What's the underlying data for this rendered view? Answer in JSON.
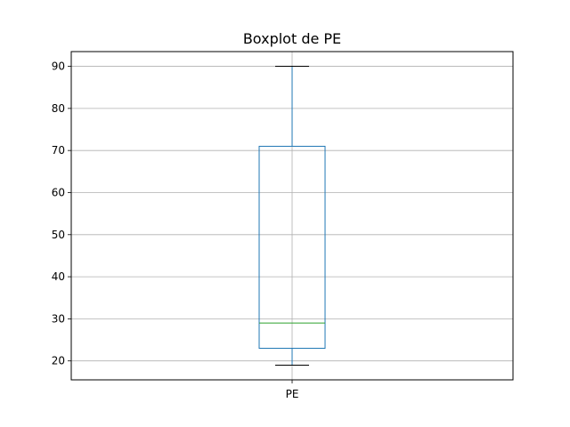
{
  "chart_data": {
    "type": "box",
    "title": "Boxplot de PE",
    "xlabel": "",
    "ylabel": "",
    "categories": [
      "PE"
    ],
    "boxes": [
      {
        "category": "PE",
        "whisker_low": 19,
        "q1": 23,
        "median": 29,
        "q3": 71,
        "whisker_high": 90
      }
    ],
    "ylim": [
      15.5,
      93.5
    ],
    "yticks": [
      20,
      30,
      40,
      50,
      60,
      70,
      80,
      90
    ],
    "grid": true,
    "colors": {
      "box": "#1f77b4",
      "median": "#2ca02c",
      "whisker": "#1f77b4",
      "cap": "#000000",
      "grid": "#b0b0b0"
    }
  }
}
